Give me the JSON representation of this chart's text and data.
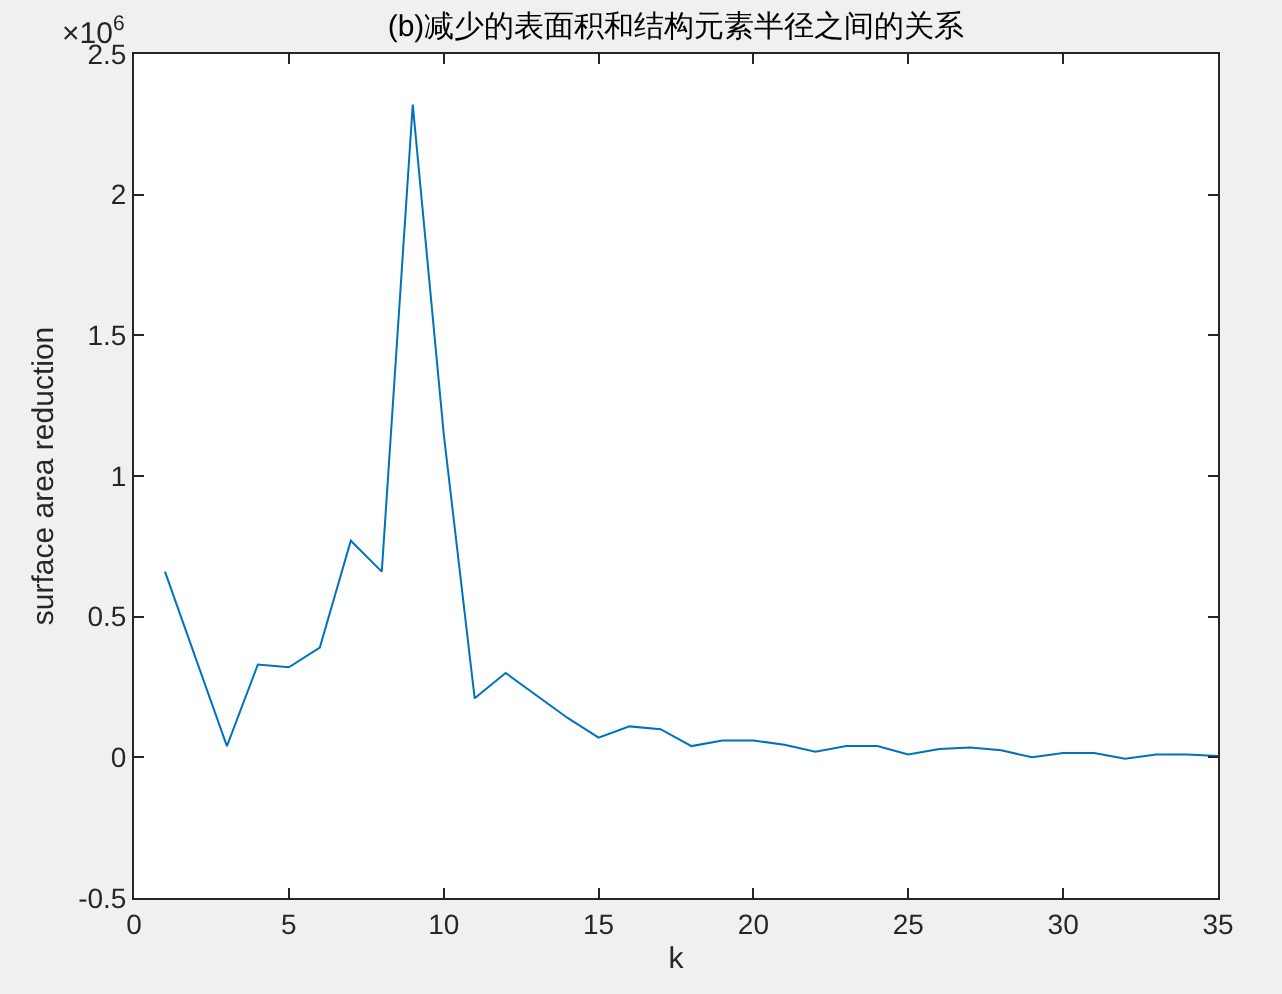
{
  "chart_data": {
    "type": "line",
    "title": "(b)减少的表面积和结构元素半径之间的关系",
    "xlabel": "k",
    "ylabel": "surface area reduction",
    "annotations": [
      "×10$^{6}$"
    ],
    "x": [
      1,
      2,
      3,
      4,
      5,
      6,
      7,
      8,
      9,
      10,
      11,
      12,
      13,
      14,
      15,
      16,
      17,
      18,
      19,
      20,
      21,
      22,
      23,
      24,
      25,
      26,
      27,
      28,
      29,
      30,
      31,
      32,
      33,
      34,
      35
    ],
    "series": [
      {
        "color": "#0072bd",
        "values": [
          0.66,
          0.35,
          0.04,
          0.33,
          0.32,
          0.39,
          0.77,
          0.66,
          2.32,
          1.15,
          0.21,
          0.3,
          0.22,
          0.14,
          0.07,
          0.11,
          0.1,
          0.04,
          0.06,
          0.06,
          0.045,
          0.02,
          0.04,
          0.04,
          0.01,
          0.03,
          0.035,
          0.025,
          0.0,
          0.015,
          0.015,
          -0.005,
          0.01,
          0.01,
          0.005
        ]
      }
    ],
    "xlim": [
      0,
      35
    ],
    "xticks": [
      0,
      5,
      10,
      15,
      20,
      25,
      30,
      35
    ],
    "ylim": [
      -0.5,
      2.5
    ],
    "yticks": [
      -0.5,
      0,
      0.5,
      1,
      1.5,
      2,
      2.5
    ],
    "grid": false,
    "marker": "none",
    "line_style": "solid"
  }
}
